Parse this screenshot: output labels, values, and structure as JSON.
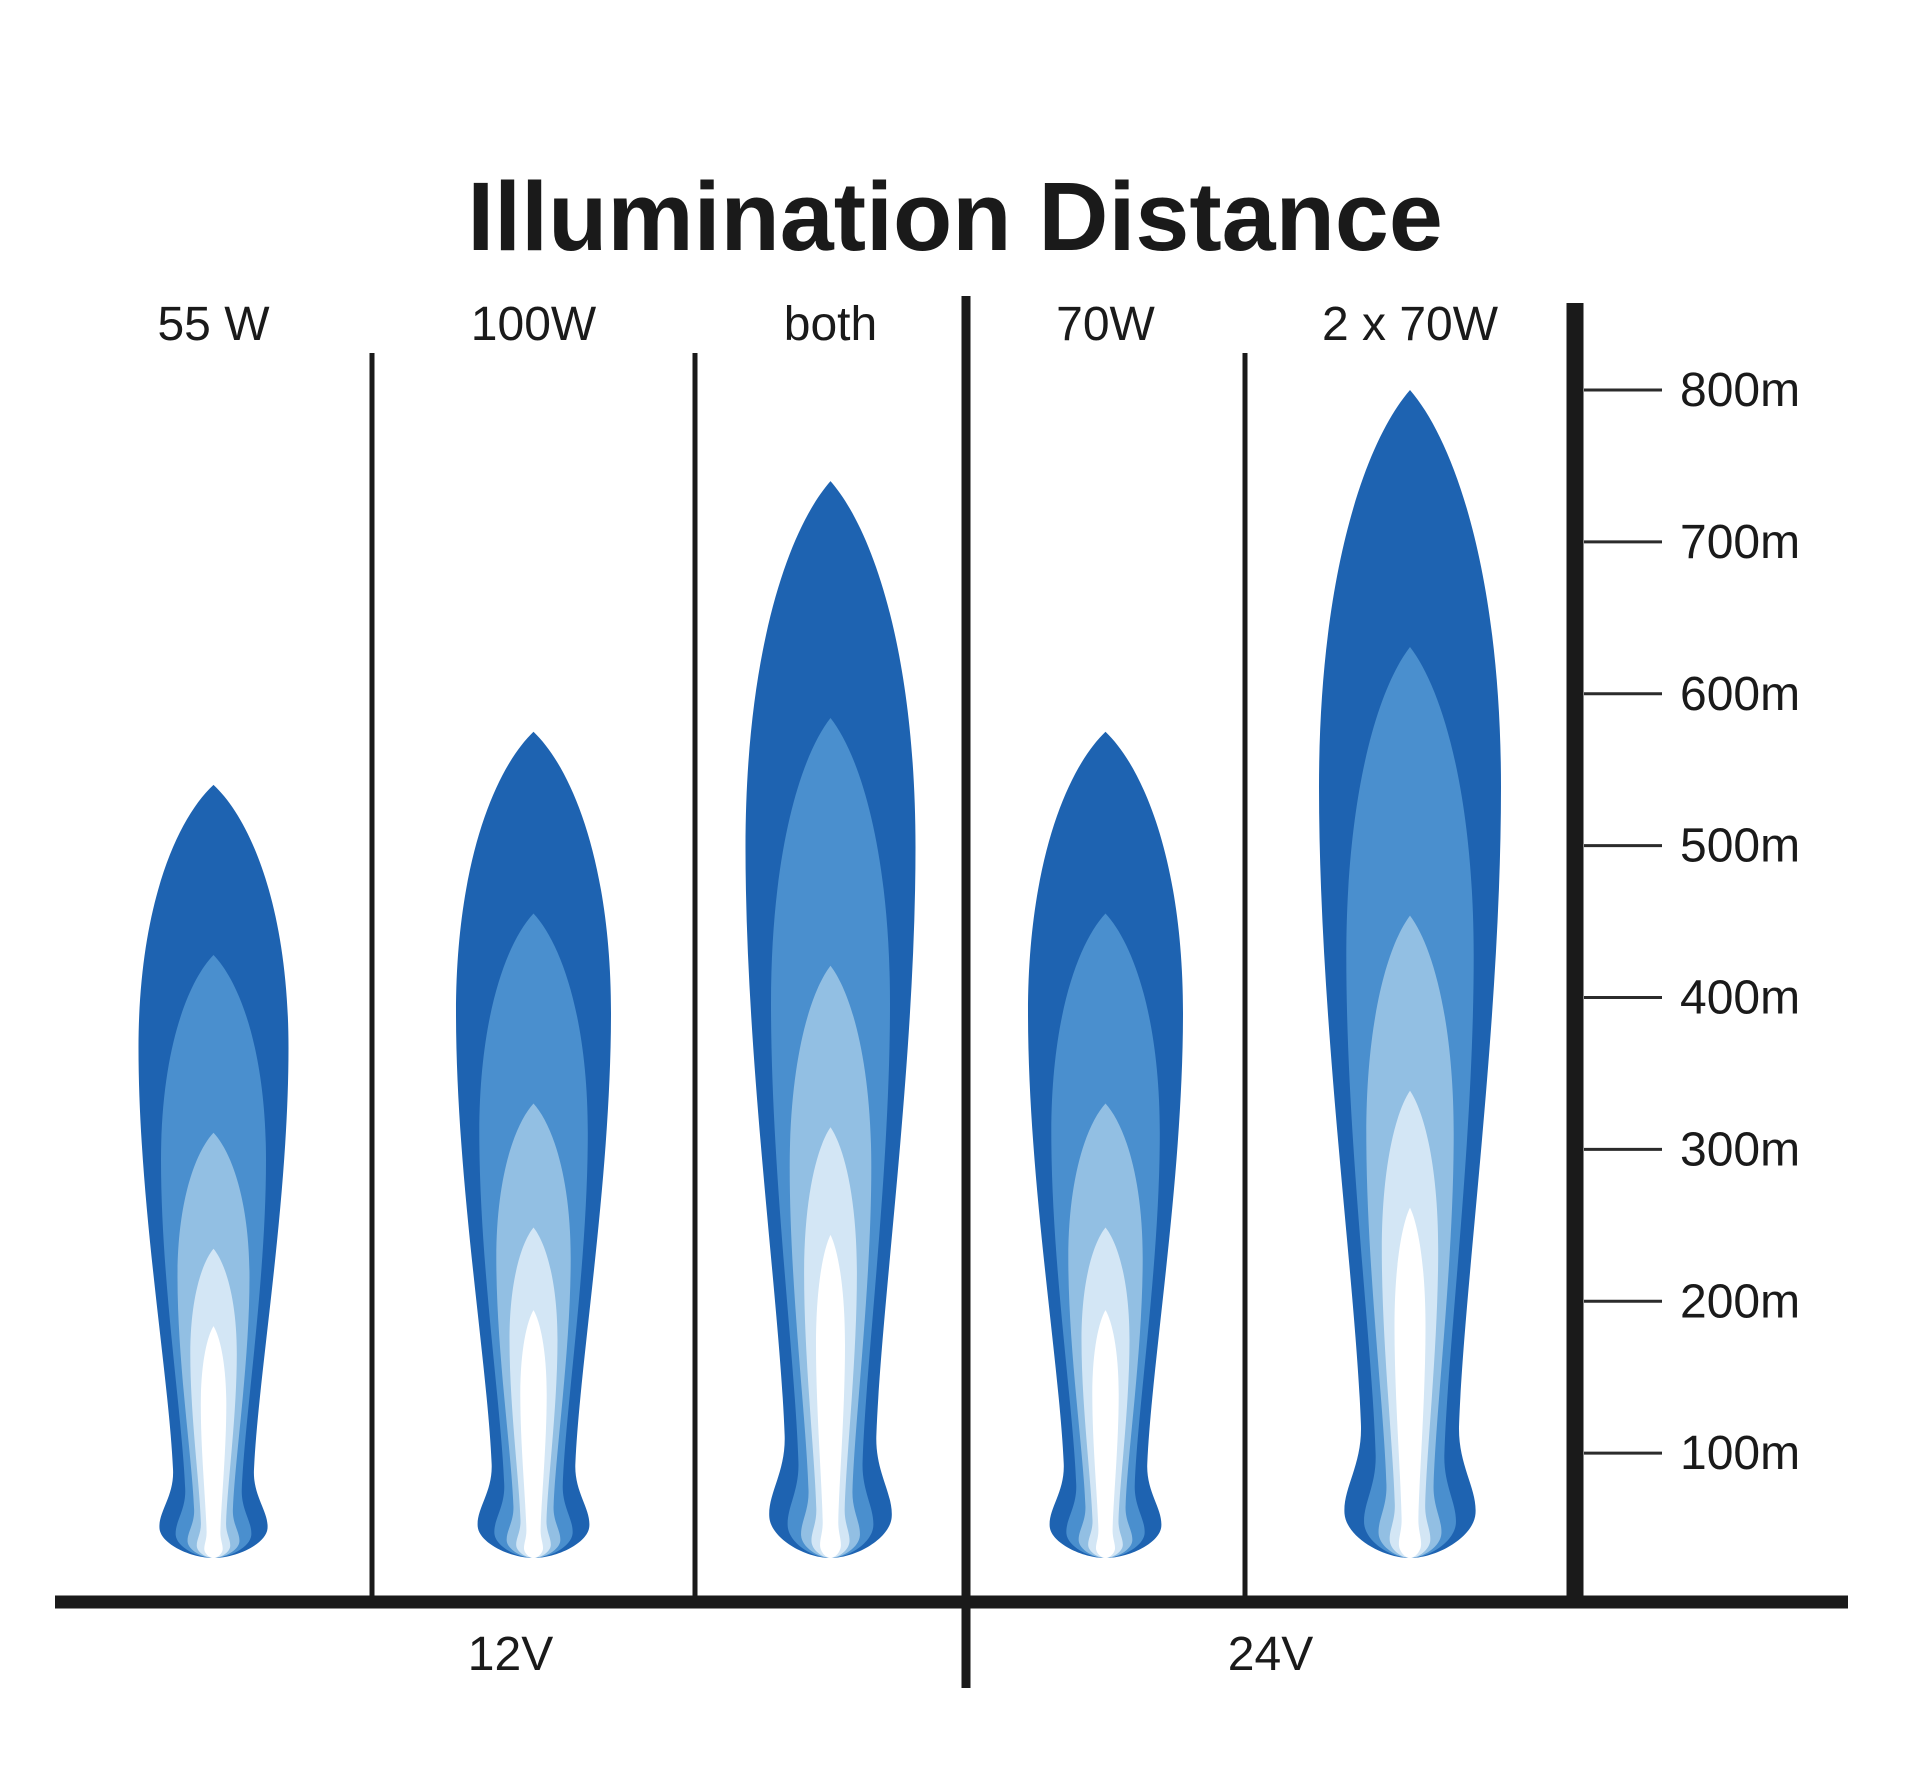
{
  "title": "Illumination Distance",
  "y_axis": {
    "tick_labels": [
      "800m",
      "700m",
      "600m",
      "500m",
      "400m",
      "300m",
      "200m",
      "100m"
    ]
  },
  "voltage_groups": [
    {
      "label": "12V",
      "columns": [
        "55 W",
        "100W",
        "both"
      ]
    },
    {
      "label": "24V",
      "columns": [
        "70W",
        "2 x 70W"
      ]
    }
  ],
  "chart_data": {
    "type": "area",
    "title": "Illumination Distance",
    "subtitle": "",
    "unit": "m",
    "ylim": [
      0,
      850
    ],
    "grid": false,
    "legend_position": "none",
    "y_ticks_m": [
      800,
      700,
      600,
      500,
      400,
      300,
      200,
      100
    ],
    "y_tick_labels": [
      "800m",
      "700m",
      "600m",
      "500m",
      "400m",
      "300m",
      "200m",
      "100m"
    ],
    "categories": [
      "55 W",
      "100W",
      "both",
      "70W",
      "2 x 70W"
    ],
    "group_labels": [
      "12V",
      "24V"
    ],
    "beams": [
      {
        "label": "55 W",
        "group": "12V",
        "illumination_distance_m": 540
      },
      {
        "label": "100W",
        "group": "12V",
        "illumination_distance_m": 575
      },
      {
        "label": "both",
        "group": "12V",
        "illumination_distance_m": 740
      },
      {
        "label": "70W",
        "group": "24V",
        "illumination_distance_m": 575
      },
      {
        "label": "2 x 70W",
        "group": "24V",
        "illumination_distance_m": 800
      }
    ],
    "beam_layer_colors": [
      "#1e63b1",
      "#4a8fce",
      "#92bfe3",
      "#d3e6f5",
      "#ffffff"
    ],
    "line_color": "#1a1a1a",
    "text_color": "#1a1a1a"
  }
}
